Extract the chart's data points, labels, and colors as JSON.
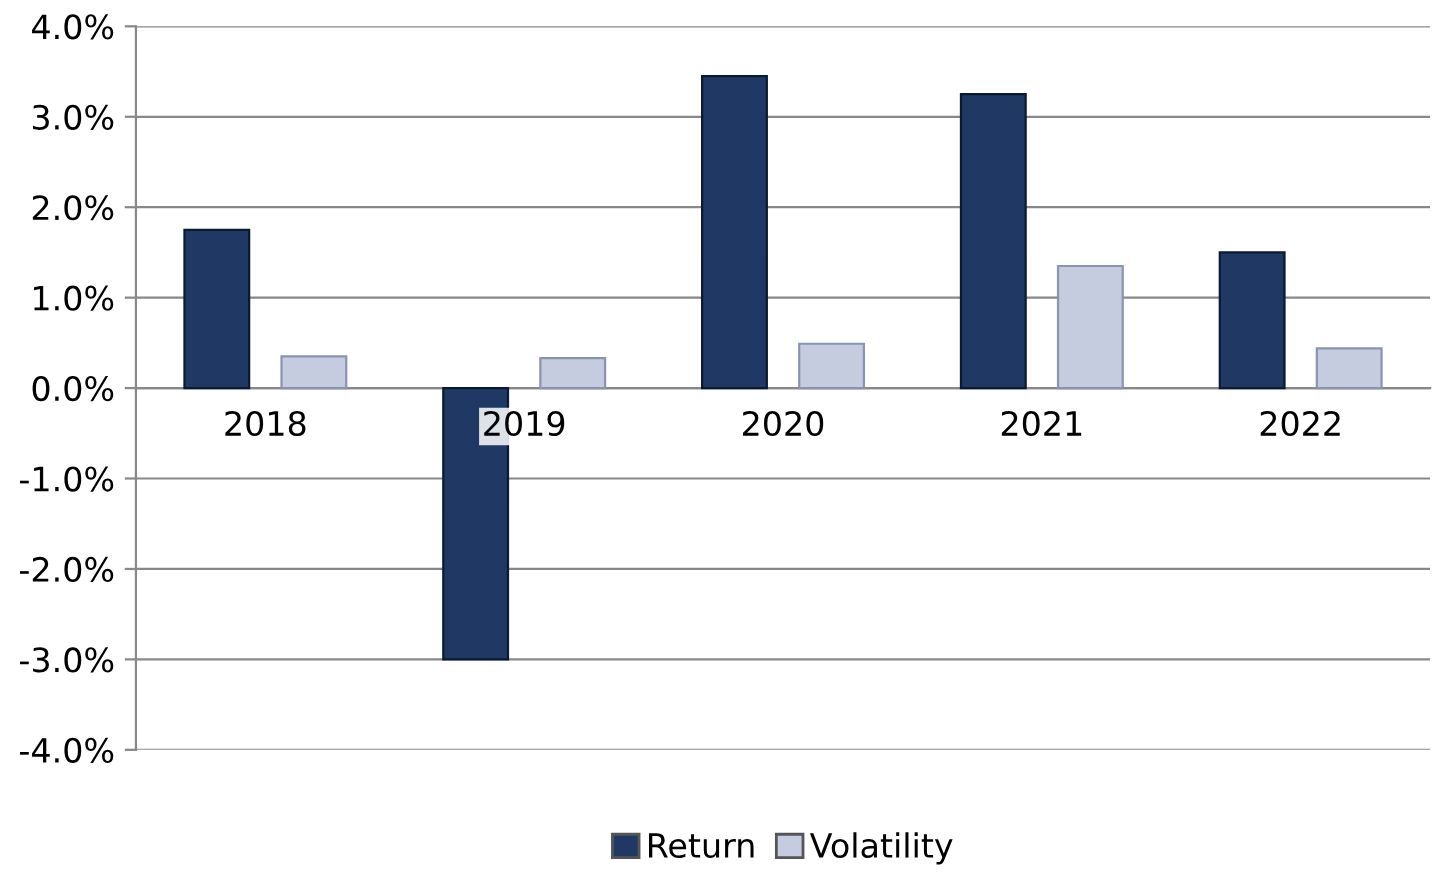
{
  "chart_data": {
    "type": "bar",
    "categories": [
      "2018",
      "2019",
      "2020",
      "2021",
      "2022"
    ],
    "series": [
      {
        "name": "Return",
        "color": "#1f3864",
        "values": [
          1.75,
          -3.0,
          3.45,
          3.25,
          1.5
        ]
      },
      {
        "name": "Volatility",
        "color": "#c5cce0",
        "values": [
          0.35,
          0.33,
          0.49,
          1.35,
          0.44
        ]
      }
    ],
    "ylim": [
      -4,
      4
    ],
    "yticks": [
      {
        "value": -4,
        "label": "-4.0%"
      },
      {
        "value": -3,
        "label": "-3.0%"
      },
      {
        "value": -2,
        "label": "-2.0%"
      },
      {
        "value": -1,
        "label": "-1.0%"
      },
      {
        "value": 0,
        "label": "0.0%"
      },
      {
        "value": 1,
        "label": "1.0%"
      },
      {
        "value": 2,
        "label": "2.0%"
      },
      {
        "value": 3,
        "label": "3.0%"
      },
      {
        "value": 4,
        "label": "4.0%"
      }
    ],
    "grid": "y",
    "legend": "bottom"
  }
}
